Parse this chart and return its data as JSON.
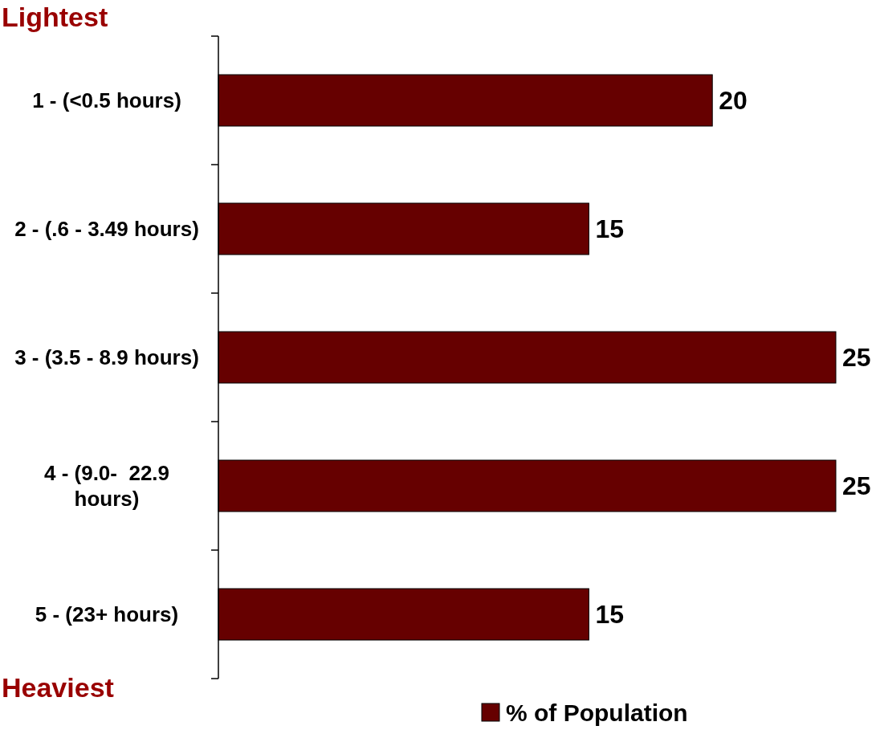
{
  "chart_data": {
    "type": "bar",
    "orientation": "horizontal",
    "categories": [
      "1 - (<0.5 hours)",
      "2 - (.6 - 3.49 hours)",
      "3 - (3.5 - 8.9 hours)",
      "4 - (9.0-  22.9 hours)",
      "5 - (23+ hours)"
    ],
    "series": [
      {
        "name": "% of Population",
        "color": "#660000",
        "values": [
          20,
          15,
          25,
          25,
          15
        ]
      }
    ],
    "data_labels": true,
    "legend": "bottom",
    "annotations": [
      "Lightest",
      "Heaviest"
    ]
  }
}
